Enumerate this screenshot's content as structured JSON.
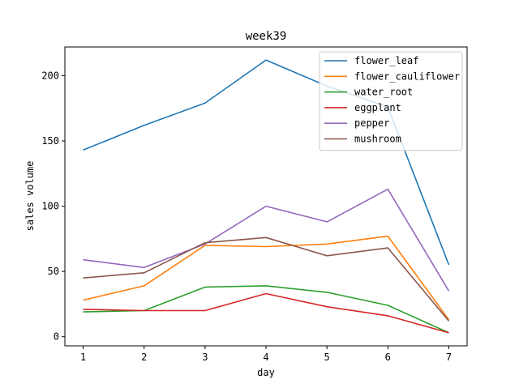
{
  "chart_data": {
    "type": "line",
    "title": "week39",
    "xlabel": "day",
    "ylabel": "sales volume",
    "x": [
      1,
      2,
      3,
      4,
      5,
      6,
      7
    ],
    "xlim": [
      0.7,
      7.3
    ],
    "ylim": [
      -7,
      222
    ],
    "xticks": [
      1,
      2,
      3,
      4,
      5,
      6,
      7
    ],
    "yticks": [
      0,
      50,
      100,
      150,
      200
    ],
    "grid": false,
    "legend_position": "top-right",
    "series": [
      {
        "name": "flower_leaf",
        "color": "#1f77b4",
        "values": [
          143,
          162,
          179,
          212,
          192,
          176,
          55
        ]
      },
      {
        "name": "flower_cauliflower",
        "color": "#ff7f0e",
        "values": [
          28,
          39,
          70,
          69,
          71,
          77,
          13
        ]
      },
      {
        "name": "water_root",
        "color": "#2ca02c",
        "values": [
          19,
          20,
          38,
          39,
          34,
          24,
          3
        ]
      },
      {
        "name": "eggplant",
        "color": "#d62728",
        "values": [
          21,
          20,
          20,
          33,
          23,
          16,
          3
        ]
      },
      {
        "name": "pepper",
        "color": "#9467bd",
        "values": [
          59,
          53,
          71,
          100,
          88,
          113,
          35
        ]
      },
      {
        "name": "mushroom",
        "color": "#8c564b",
        "values": [
          45,
          49,
          72,
          76,
          62,
          68,
          12
        ]
      }
    ]
  }
}
